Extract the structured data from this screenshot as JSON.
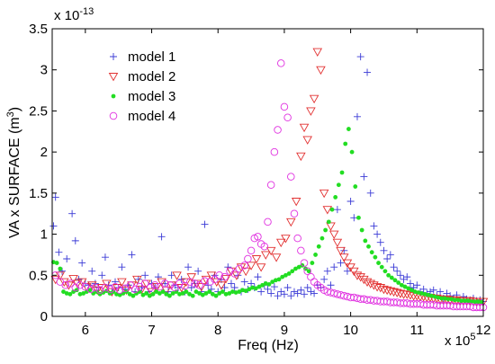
{
  "chart_data": {
    "type": "scatter",
    "xlabel": "Freq (Hz)",
    "ylabel": "VA x SURFACE (m",
    "ylabel_sup": "3",
    "ylabel_close": ")",
    "x_multiplier": {
      "base": "x 10",
      "exp": "5"
    },
    "y_multiplier": {
      "base": "x 10",
      "exp": "-13"
    },
    "xlim": [
      5.5,
      12
    ],
    "ylim": [
      0,
      3.5
    ],
    "xticks": [
      6,
      7,
      8,
      9,
      10,
      11,
      12
    ],
    "yticks": [
      0,
      0.5,
      1,
      1.5,
      2,
      2.5,
      3,
      3.5
    ],
    "grid": false,
    "legend_position": "top-left",
    "series": [
      {
        "name": "model 1",
        "marker": "plus",
        "color": "#3b3bd6",
        "x": [
          5.52,
          5.55,
          5.6,
          5.65,
          5.72,
          5.8,
          5.85,
          5.9,
          5.95,
          6.0,
          6.05,
          6.1,
          6.15,
          6.2,
          6.25,
          6.3,
          6.35,
          6.4,
          6.45,
          6.5,
          6.55,
          6.6,
          6.65,
          6.7,
          6.75,
          6.8,
          6.85,
          6.9,
          6.95,
          7.0,
          7.05,
          7.1,
          7.15,
          7.2,
          7.25,
          7.3,
          7.35,
          7.4,
          7.45,
          7.5,
          7.55,
          7.6,
          7.65,
          7.7,
          7.75,
          7.8,
          7.85,
          7.9,
          7.95,
          8.0,
          8.05,
          8.1,
          8.15,
          8.2,
          8.25,
          8.3,
          8.35,
          8.4,
          8.45,
          8.5,
          8.55,
          8.6,
          8.65,
          8.7,
          8.75,
          8.8,
          8.85,
          8.9,
          8.95,
          9.0,
          9.05,
          9.1,
          9.15,
          9.2,
          9.25,
          9.3,
          9.35,
          9.4,
          9.45,
          9.5,
          9.55,
          9.6,
          9.65,
          9.7,
          9.75,
          9.8,
          9.85,
          9.9,
          9.95,
          10.0,
          10.05,
          10.1,
          10.15,
          10.2,
          10.25,
          10.3,
          10.35,
          10.4,
          10.45,
          10.5,
          10.55,
          10.6,
          10.65,
          10.7,
          10.75,
          10.8,
          10.85,
          10.9,
          10.95,
          11.0,
          11.05,
          11.1,
          11.15,
          11.2,
          11.25,
          11.3,
          11.35,
          11.4,
          11.45,
          11.5,
          11.55,
          11.6,
          11.65,
          11.7,
          11.75,
          11.8,
          11.85,
          11.9,
          11.95,
          12.0
        ],
        "y": [
          1.1,
          1.45,
          0.78,
          0.55,
          0.7,
          1.25,
          0.92,
          0.45,
          0.65,
          0.4,
          0.38,
          0.55,
          0.4,
          0.35,
          0.5,
          0.72,
          0.38,
          0.3,
          0.42,
          0.35,
          0.6,
          0.33,
          0.38,
          0.75,
          0.3,
          0.45,
          0.35,
          0.5,
          0.3,
          0.4,
          0.35,
          0.48,
          0.97,
          0.4,
          0.3,
          0.5,
          0.38,
          0.35,
          0.45,
          0.3,
          0.6,
          0.35,
          0.4,
          0.55,
          0.3,
          1.12,
          0.38,
          0.33,
          0.5,
          0.3,
          0.45,
          0.35,
          0.6,
          0.4,
          0.35,
          0.5,
          0.3,
          0.42,
          0.33,
          0.4,
          0.35,
          0.48,
          0.3,
          0.38,
          0.33,
          0.28,
          0.36,
          0.25,
          0.3,
          0.27,
          0.35,
          0.25,
          0.3,
          0.28,
          0.32,
          0.27,
          0.35,
          0.3,
          0.28,
          0.38,
          0.35,
          0.45,
          0.55,
          0.38,
          0.6,
          1.3,
          0.65,
          0.8,
          0.55,
          1.4,
          1.2,
          2.43,
          3.16,
          1.7,
          2.97,
          1.5,
          1.1,
          1.0,
          0.9,
          0.8,
          0.7,
          0.75,
          0.6,
          0.55,
          0.5,
          0.45,
          0.48,
          0.4,
          0.35,
          0.38,
          0.3,
          0.33,
          0.28,
          0.3,
          0.32,
          0.25,
          0.3,
          0.22,
          0.28,
          0.25,
          0.22,
          0.26,
          0.2,
          0.24,
          0.21,
          0.2,
          0.22,
          0.19,
          0.2,
          0.18
        ]
      },
      {
        "name": "model 2",
        "marker": "triangle-down",
        "color": "#e23030",
        "x": [
          5.55,
          5.62,
          5.68,
          5.75,
          5.82,
          5.88,
          5.95,
          6.02,
          6.1,
          6.18,
          6.25,
          6.32,
          6.4,
          6.48,
          6.55,
          6.62,
          6.7,
          6.78,
          6.85,
          6.92,
          7.0,
          7.08,
          7.15,
          7.22,
          7.3,
          7.38,
          7.45,
          7.52,
          7.6,
          7.68,
          7.75,
          7.82,
          7.9,
          7.98,
          8.05,
          8.12,
          8.2,
          8.28,
          8.35,
          8.42,
          8.5,
          8.58,
          8.65,
          8.72,
          8.8,
          8.88,
          8.95,
          9.02,
          9.1,
          9.18,
          9.25,
          9.3,
          9.35,
          9.4,
          9.45,
          9.5,
          9.55,
          9.6,
          9.65,
          9.7,
          9.75,
          9.8,
          9.85,
          9.9,
          9.95,
          10.0,
          10.05,
          10.1,
          10.15,
          10.2,
          10.25,
          10.3,
          10.35,
          10.4,
          10.45,
          10.5,
          10.55,
          10.6,
          10.65,
          10.7,
          10.75,
          10.8,
          10.85,
          10.9,
          10.95,
          11.0,
          11.05,
          11.1,
          11.15,
          11.2,
          11.25,
          11.3,
          11.35,
          11.4,
          11.45,
          11.5,
          11.55,
          11.6,
          11.65,
          11.7,
          11.75,
          11.8,
          11.85,
          11.9,
          11.95,
          12.0
        ],
        "y": [
          0.45,
          0.5,
          0.42,
          0.38,
          0.46,
          0.4,
          0.42,
          0.36,
          0.38,
          0.32,
          0.35,
          0.4,
          0.3,
          0.35,
          0.42,
          0.32,
          0.38,
          0.45,
          0.33,
          0.4,
          0.3,
          0.36,
          0.42,
          0.32,
          0.38,
          0.5,
          0.35,
          0.42,
          0.48,
          0.4,
          0.36,
          0.45,
          0.5,
          0.42,
          0.38,
          0.46,
          0.55,
          0.5,
          0.6,
          0.55,
          0.62,
          0.7,
          0.6,
          0.75,
          0.8,
          0.72,
          0.9,
          0.95,
          1.15,
          1.4,
          1.95,
          2.3,
          2.15,
          2.5,
          2.65,
          3.22,
          3.0,
          1.5,
          1.3,
          1.1,
          1.0,
          0.9,
          0.8,
          0.72,
          0.65,
          0.6,
          0.55,
          0.5,
          0.48,
          0.45,
          0.42,
          0.4,
          0.38,
          0.36,
          0.35,
          0.33,
          0.32,
          0.31,
          0.3,
          0.29,
          0.28,
          0.27,
          0.27,
          0.26,
          0.25,
          0.25,
          0.24,
          0.24,
          0.23,
          0.23,
          0.22,
          0.22,
          0.21,
          0.21,
          0.21,
          0.2,
          0.2,
          0.2,
          0.19,
          0.19,
          0.19,
          0.19,
          0.18,
          0.18,
          0.18,
          0.18
        ]
      },
      {
        "name": "model 3",
        "marker": "dot",
        "color": "#22dd22",
        "x": [
          5.52,
          5.57,
          5.62,
          5.67,
          5.72,
          5.77,
          5.82,
          5.87,
          5.92,
          5.97,
          6.02,
          6.07,
          6.12,
          6.17,
          6.22,
          6.27,
          6.32,
          6.37,
          6.42,
          6.47,
          6.52,
          6.57,
          6.62,
          6.67,
          6.72,
          6.77,
          6.82,
          6.87,
          6.92,
          6.97,
          7.02,
          7.07,
          7.12,
          7.17,
          7.22,
          7.27,
          7.32,
          7.37,
          7.42,
          7.47,
          7.52,
          7.57,
          7.62,
          7.67,
          7.72,
          7.77,
          7.82,
          7.87,
          7.92,
          7.97,
          8.02,
          8.07,
          8.12,
          8.17,
          8.22,
          8.27,
          8.32,
          8.37,
          8.42,
          8.47,
          8.52,
          8.57,
          8.62,
          8.67,
          8.72,
          8.77,
          8.82,
          8.87,
          8.92,
          8.97,
          9.02,
          9.07,
          9.12,
          9.17,
          9.22,
          9.27,
          9.32,
          9.37,
          9.42,
          9.47,
          9.52,
          9.57,
          9.62,
          9.67,
          9.72,
          9.77,
          9.82,
          9.87,
          9.92,
          9.97,
          10.02,
          10.07,
          10.12,
          10.17,
          10.22,
          10.27,
          10.32,
          10.37,
          10.42,
          10.47,
          10.52,
          10.57,
          10.62,
          10.67,
          10.72,
          10.77,
          10.82,
          10.87,
          10.92,
          10.97,
          11.02,
          11.07,
          11.12,
          11.17,
          11.22,
          11.27,
          11.32,
          11.37,
          11.42,
          11.47,
          11.52,
          11.57,
          11.62,
          11.67,
          11.72,
          11.77,
          11.82,
          11.87,
          11.92,
          11.97
        ],
        "y": [
          0.66,
          0.65,
          0.58,
          0.3,
          0.28,
          0.27,
          0.3,
          0.32,
          0.27,
          0.28,
          0.3,
          0.32,
          0.28,
          0.3,
          0.27,
          0.29,
          0.31,
          0.28,
          0.3,
          0.27,
          0.26,
          0.28,
          0.3,
          0.27,
          0.25,
          0.28,
          0.3,
          0.26,
          0.28,
          0.25,
          0.27,
          0.3,
          0.28,
          0.3,
          0.27,
          0.25,
          0.28,
          0.3,
          0.27,
          0.28,
          0.3,
          0.27,
          0.25,
          0.3,
          0.28,
          0.26,
          0.28,
          0.3,
          0.27,
          0.25,
          0.28,
          0.3,
          0.27,
          0.28,
          0.3,
          0.29,
          0.3,
          0.32,
          0.31,
          0.33,
          0.35,
          0.34,
          0.36,
          0.38,
          0.4,
          0.39,
          0.42,
          0.44,
          0.45,
          0.48,
          0.5,
          0.52,
          0.55,
          0.58,
          0.6,
          0.62,
          0.58,
          0.55,
          0.65,
          0.75,
          0.85,
          0.95,
          1.05,
          1.15,
          1.3,
          1.45,
          1.6,
          1.75,
          2.1,
          2.28,
          2.0,
          1.58,
          1.2,
          1.05,
          0.92,
          0.85,
          0.78,
          0.72,
          0.65,
          0.6,
          0.55,
          0.5,
          0.47,
          0.44,
          0.41,
          0.38,
          0.36,
          0.34,
          0.32,
          0.3,
          0.29,
          0.28,
          0.27,
          0.26,
          0.25,
          0.24,
          0.23,
          0.22,
          0.22,
          0.21,
          0.21,
          0.2,
          0.2,
          0.19,
          0.19,
          0.19,
          0.18,
          0.18,
          0.18,
          0.17
        ]
      },
      {
        "name": "model 4",
        "marker": "circle",
        "color": "#e030e0",
        "x": [
          5.55,
          5.62,
          5.7,
          5.78,
          5.85,
          5.92,
          6.0,
          6.08,
          6.15,
          6.22,
          6.3,
          6.38,
          6.45,
          6.52,
          6.6,
          6.68,
          6.75,
          6.82,
          6.9,
          6.98,
          7.05,
          7.12,
          7.2,
          7.28,
          7.35,
          7.42,
          7.5,
          7.58,
          7.65,
          7.72,
          7.8,
          7.88,
          7.95,
          8.02,
          8.1,
          8.18,
          8.25,
          8.32,
          8.4,
          8.45,
          8.5,
          8.55,
          8.6,
          8.65,
          8.7,
          8.75,
          8.8,
          8.85,
          8.9,
          8.95,
          9.0,
          9.05,
          9.1,
          9.15,
          9.2,
          9.25,
          9.3,
          9.35,
          9.4,
          9.45,
          9.5,
          9.55,
          9.6,
          9.65,
          9.7,
          9.75,
          9.8,
          9.85,
          9.9,
          9.95,
          10.0,
          10.05,
          10.1,
          10.15,
          10.2,
          10.25,
          10.3,
          10.35,
          10.4,
          10.45,
          10.5,
          10.55,
          10.6,
          10.65,
          10.7,
          10.75,
          10.8,
          10.85,
          10.9,
          10.95,
          11.0,
          11.05,
          11.1,
          11.15,
          11.2,
          11.25,
          11.3,
          11.35,
          11.4,
          11.45,
          11.5,
          11.55,
          11.6,
          11.65,
          11.7,
          11.75,
          11.8,
          11.85,
          11.9,
          11.95,
          12.0
        ],
        "y": [
          0.5,
          0.42,
          0.38,
          0.4,
          0.35,
          0.38,
          0.36,
          0.33,
          0.35,
          0.32,
          0.35,
          0.33,
          0.36,
          0.32,
          0.34,
          0.38,
          0.33,
          0.36,
          0.4,
          0.35,
          0.38,
          0.36,
          0.4,
          0.38,
          0.35,
          0.4,
          0.37,
          0.42,
          0.4,
          0.38,
          0.43,
          0.42,
          0.45,
          0.5,
          0.48,
          0.55,
          0.52,
          0.58,
          0.62,
          0.7,
          0.8,
          0.95,
          0.97,
          0.88,
          0.85,
          1.15,
          1.6,
          2.0,
          2.27,
          3.08,
          2.55,
          2.42,
          1.7,
          1.25,
          0.95,
          0.8,
          0.65,
          0.55,
          0.48,
          0.42,
          0.38,
          0.35,
          0.32,
          0.3,
          0.29,
          0.28,
          0.27,
          0.26,
          0.25,
          0.24,
          0.23,
          0.23,
          0.22,
          0.21,
          0.21,
          0.2,
          0.2,
          0.19,
          0.19,
          0.18,
          0.18,
          0.18,
          0.17,
          0.17,
          0.17,
          0.16,
          0.16,
          0.16,
          0.15,
          0.15,
          0.15,
          0.15,
          0.14,
          0.14,
          0.14,
          0.14,
          0.13,
          0.13,
          0.13,
          0.13,
          0.13,
          0.12,
          0.12,
          0.12,
          0.12,
          0.12,
          0.12,
          0.11,
          0.11,
          0.11,
          0.11
        ]
      }
    ]
  }
}
